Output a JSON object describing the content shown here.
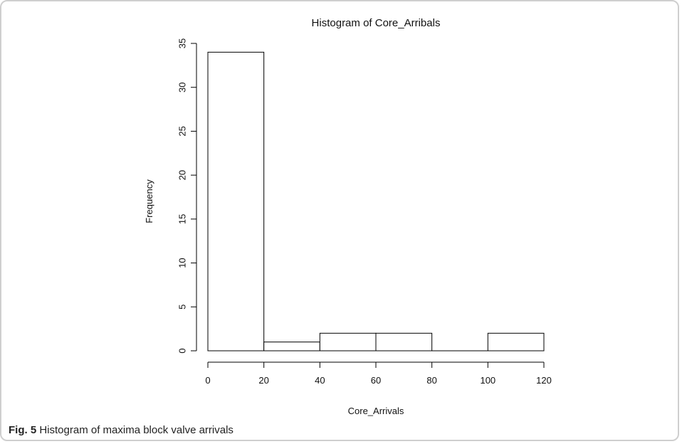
{
  "chart_data": {
    "type": "bar",
    "title": "Histogram of Core_Arribals",
    "xlabel": "Core_Arrivals",
    "ylabel": "Frequency",
    "bins": [
      {
        "start": 0,
        "end": 20,
        "value": 34
      },
      {
        "start": 20,
        "end": 40,
        "value": 1
      },
      {
        "start": 40,
        "end": 60,
        "value": 2
      },
      {
        "start": 60,
        "end": 80,
        "value": 2
      },
      {
        "start": 80,
        "end": 100,
        "value": 0
      },
      {
        "start": 100,
        "end": 120,
        "value": 2
      }
    ],
    "xlim": [
      0,
      120
    ],
    "ylim": [
      0,
      35
    ],
    "xticks": [
      "0",
      "20",
      "40",
      "60",
      "80",
      "100",
      "120"
    ],
    "yticks": [
      "0",
      "5",
      "10",
      "15",
      "20",
      "25",
      "30",
      "35"
    ],
    "grid": false
  },
  "caption": {
    "label": "Fig. 5",
    "text": "Histogram of maxima block valve arrivals"
  }
}
